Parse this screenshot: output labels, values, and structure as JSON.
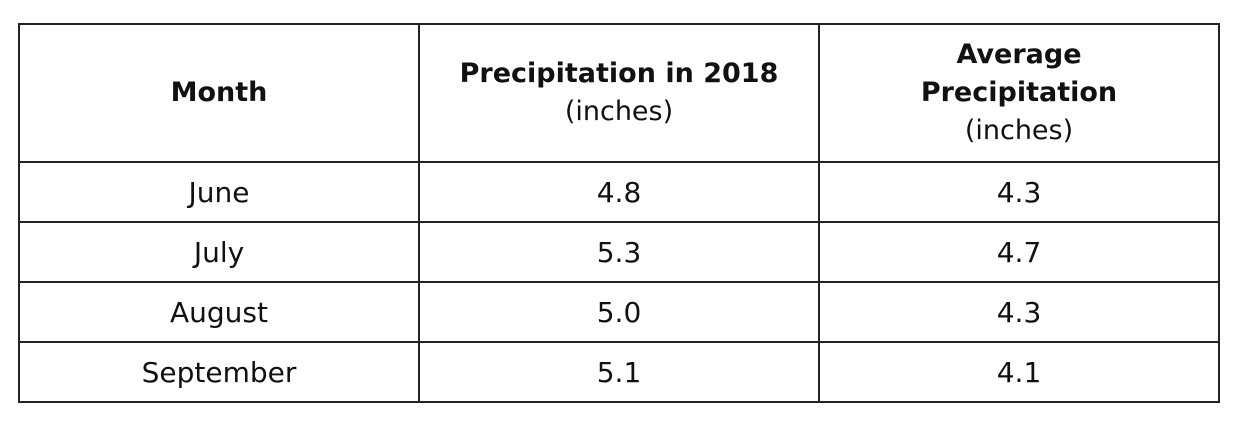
{
  "table": {
    "header": [
      {
        "title": "Month"
      },
      {
        "title": "Precipitation in 2018",
        "unit": "(inches)"
      },
      {
        "title": "Average Precipitation",
        "unit": "(inches)"
      }
    ],
    "rows": [
      [
        "June",
        "4.8",
        "4.3"
      ],
      [
        "July",
        "5.3",
        "4.7"
      ],
      [
        "August",
        "5.0",
        "4.3"
      ],
      [
        "September",
        "5.1",
        "4.1"
      ]
    ]
  }
}
